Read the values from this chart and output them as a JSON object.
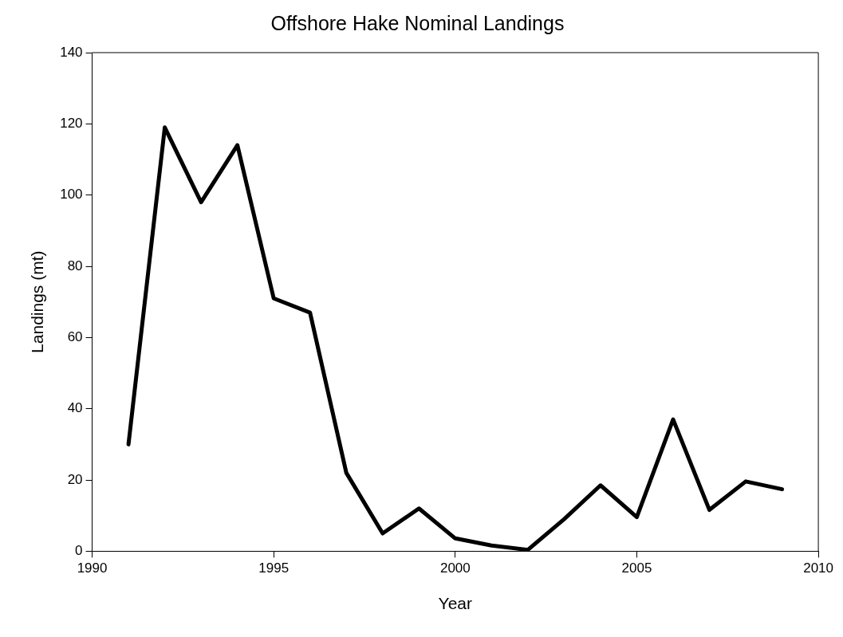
{
  "chart_data": {
    "type": "line",
    "title": "Offshore Hake Nominal Landings",
    "xlabel": "Year",
    "ylabel": "Landings (mt)",
    "x": [
      1991,
      1992,
      1993,
      1994,
      1995,
      1996,
      1997,
      1998,
      1999,
      2000,
      2001,
      2002,
      2003,
      2004,
      2005,
      2006,
      2007,
      2008,
      2009
    ],
    "series": [
      {
        "color": "#000000",
        "values": [
          30,
          119,
          98,
          114,
          71,
          67,
          22,
          5,
          12,
          3.6,
          1.6,
          0.4,
          9,
          18.5,
          9.6,
          37,
          11.6,
          19.6,
          17.4
        ]
      }
    ],
    "xlim": [
      1990,
      2010
    ],
    "xticks": [
      1990,
      1995,
      2000,
      2005,
      2010
    ],
    "ylim": [
      0,
      140
    ],
    "yticks": [
      0,
      20,
      40,
      60,
      80,
      100,
      120,
      140
    ],
    "grid": false,
    "legend": false,
    "marker": "none",
    "line_style": "solid"
  }
}
